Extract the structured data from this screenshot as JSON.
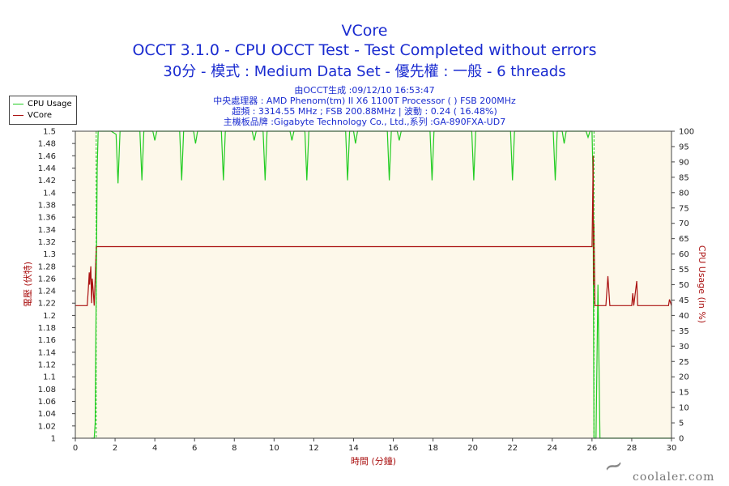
{
  "chart_data": {
    "type": "line",
    "title": "VCore",
    "subtitle1": "OCCT 3.1.0 - CPU OCCT Test - Test Completed without errors",
    "subtitle2": "30分 - 模式 : Medium Data Set - 優先權 : 一般 - 6 threads",
    "info": [
      "由OCCT生成 :09/12/10 16:53:47",
      "中央處理器 : AMD Phenom(tm) II X6 1100T Processor (  ) FSB 200MHz",
      "超頻 : 3314.55 MHz ; FSB 200.88MHz | 波動 : 0.24 ( 16.48%)",
      "主機板品牌 :Gigabyte Technology Co., Ltd.,系列 :GA-890FXA-UD7"
    ],
    "xlabel": "時間 (分鐘)",
    "ylabel_left": "電壓 (伏特)",
    "ylabel_right": "CPU Usage (in %)",
    "xlim": [
      0,
      30
    ],
    "ylim_left": [
      1,
      1.5
    ],
    "ylim_right": [
      0,
      100
    ],
    "x_ticks": [
      0,
      2,
      4,
      6,
      8,
      10,
      12,
      14,
      16,
      18,
      20,
      22,
      24,
      26,
      28,
      30
    ],
    "y_left_ticks": [
      "1",
      "1.02",
      "1.04",
      "1.06",
      "1.08",
      "1.1",
      "1.12",
      "1.14",
      "1.16",
      "1.18",
      "1.2",
      "1.22",
      "1.24",
      "1.26",
      "1.28",
      "1.3",
      "1.32",
      "1.34",
      "1.36",
      "1.38",
      "1.4",
      "1.42",
      "1.44",
      "1.46",
      "1.48",
      "1.5"
    ],
    "y_right_ticks": [
      0,
      5,
      10,
      15,
      20,
      25,
      30,
      35,
      40,
      45,
      50,
      55,
      60,
      65,
      70,
      75,
      80,
      85,
      90,
      95,
      100
    ],
    "grid": false,
    "legend_position": "top-left",
    "series": [
      {
        "name": "CPU Usage",
        "axis": "right",
        "color": "#22cc22",
        "points": [
          [
            0.8,
            0
          ],
          [
            0.95,
            0
          ],
          [
            1.0,
            5
          ],
          [
            1.1,
            88
          ],
          [
            1.15,
            100
          ],
          [
            1.8,
            100
          ],
          [
            2.05,
            99
          ],
          [
            2.15,
            83
          ],
          [
            2.25,
            100
          ],
          [
            3.25,
            100
          ],
          [
            3.35,
            84
          ],
          [
            3.45,
            100
          ],
          [
            3.9,
            100
          ],
          [
            4.0,
            97
          ],
          [
            4.1,
            100
          ],
          [
            5.25,
            100
          ],
          [
            5.35,
            84
          ],
          [
            5.45,
            100
          ],
          [
            5.95,
            100
          ],
          [
            6.05,
            96
          ],
          [
            6.15,
            100
          ],
          [
            7.35,
            100
          ],
          [
            7.45,
            84
          ],
          [
            7.55,
            100
          ],
          [
            8.9,
            100
          ],
          [
            9.0,
            97
          ],
          [
            9.1,
            100
          ],
          [
            9.45,
            100
          ],
          [
            9.55,
            84
          ],
          [
            9.65,
            100
          ],
          [
            10.8,
            100
          ],
          [
            10.9,
            97
          ],
          [
            11.0,
            100
          ],
          [
            11.55,
            100
          ],
          [
            11.65,
            84
          ],
          [
            11.75,
            100
          ],
          [
            13.6,
            100
          ],
          [
            13.7,
            84
          ],
          [
            13.8,
            100
          ],
          [
            14.0,
            100
          ],
          [
            14.1,
            96
          ],
          [
            14.2,
            100
          ],
          [
            15.7,
            100
          ],
          [
            15.8,
            84
          ],
          [
            15.9,
            100
          ],
          [
            16.2,
            100
          ],
          [
            16.3,
            97
          ],
          [
            16.4,
            100
          ],
          [
            17.85,
            100
          ],
          [
            17.95,
            84
          ],
          [
            18.05,
            100
          ],
          [
            19.95,
            100
          ],
          [
            20.05,
            84
          ],
          [
            20.15,
            100
          ],
          [
            21.9,
            100
          ],
          [
            22.0,
            84
          ],
          [
            22.1,
            100
          ],
          [
            24.05,
            100
          ],
          [
            24.15,
            84
          ],
          [
            24.25,
            100
          ],
          [
            24.5,
            100
          ],
          [
            24.6,
            96
          ],
          [
            24.7,
            100
          ],
          [
            25.7,
            100
          ],
          [
            25.8,
            98
          ],
          [
            25.9,
            100
          ],
          [
            26.0,
            100
          ],
          [
            26.05,
            85
          ],
          [
            26.1,
            0
          ],
          [
            26.2,
            0
          ],
          [
            26.3,
            50
          ],
          [
            26.4,
            0
          ],
          [
            30,
            0
          ]
        ]
      },
      {
        "name": "VCore",
        "axis": "left",
        "color": "#aa1111",
        "points": [
          [
            0,
            1.216
          ],
          [
            0.6,
            1.216
          ],
          [
            0.65,
            1.24
          ],
          [
            0.7,
            1.27
          ],
          [
            0.72,
            1.25
          ],
          [
            0.78,
            1.28
          ],
          [
            0.82,
            1.22
          ],
          [
            0.85,
            1.26
          ],
          [
            0.9,
            1.24
          ],
          [
            0.95,
            1.216
          ],
          [
            1.0,
            1.26
          ],
          [
            1.05,
            1.312
          ],
          [
            26.0,
            1.312
          ],
          [
            26.03,
            1.38
          ],
          [
            26.06,
            1.46
          ],
          [
            26.08,
            1.25
          ],
          [
            26.1,
            1.35
          ],
          [
            26.15,
            1.216
          ],
          [
            26.7,
            1.216
          ],
          [
            26.8,
            1.264
          ],
          [
            26.9,
            1.216
          ],
          [
            28.0,
            1.216
          ],
          [
            28.05,
            1.236
          ],
          [
            28.1,
            1.216
          ],
          [
            28.25,
            1.256
          ],
          [
            28.3,
            1.216
          ],
          [
            29.85,
            1.216
          ],
          [
            29.9,
            1.226
          ],
          [
            30,
            1.216
          ]
        ]
      }
    ]
  },
  "watermark": {
    "site": "coolaler.com"
  }
}
